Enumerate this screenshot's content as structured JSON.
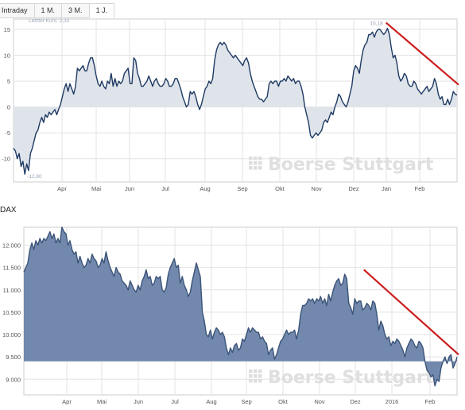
{
  "tabs": [
    {
      "label": "Intraday",
      "active": false
    },
    {
      "label": "1 M.",
      "active": false
    },
    {
      "label": "3 M.",
      "active": false
    },
    {
      "label": "1 J.",
      "active": true
    }
  ],
  "watermark": "Boerse Stuttgart",
  "chart_data": [
    {
      "type": "area",
      "annotation": "Letzter Kurs: 2,32",
      "high_label": "15,18",
      "low_label": "-12,80",
      "x_tick_labels": [
        "Apr",
        "Mai",
        "Jun",
        "Jul",
        "Aug",
        "Sep",
        "Okt",
        "Nov",
        "Dez",
        "Jan",
        "Feb"
      ],
      "y_ticks": [
        15,
        10,
        5,
        0,
        -5,
        -10
      ],
      "y_tick_labels": [
        "15",
        "10",
        "5",
        "0",
        "-5",
        "-10"
      ],
      "ylim": [
        -14.5,
        17
      ],
      "baseline": 0,
      "line_color": "#1f3a63",
      "fill_color": "#dfe4ea",
      "grid": true,
      "values": [
        -8,
        -8.5,
        -10,
        -9,
        -11.5,
        -10.5,
        -13,
        -11,
        -12.3,
        -9,
        -8,
        -6.5,
        -5,
        -4.5,
        -3,
        -2,
        -3,
        -1.5,
        -2,
        -1,
        -1.5,
        -1,
        -0.5,
        -1.5,
        -0.5,
        0.5,
        2,
        3.5,
        4.5,
        3,
        4.5,
        3.5,
        2.5,
        4,
        7.5,
        7,
        7.5,
        8,
        7,
        7,
        8.5,
        9.5,
        9.5,
        8,
        6,
        4.5,
        4,
        5,
        4,
        3.5,
        5,
        4.5,
        6.5,
        4,
        5.5,
        4,
        5,
        4.5,
        5,
        6.5,
        7,
        7.5,
        4.5,
        4.5,
        9.5,
        9,
        6.5,
        5.5,
        4,
        4,
        4.5,
        5,
        6,
        5,
        4,
        5,
        5.5,
        4.5,
        4,
        4,
        4.5,
        5.5,
        5,
        4,
        4,
        4.5,
        5.5,
        5.5,
        4.5,
        3.5,
        2,
        1,
        0,
        0.5,
        3,
        2.5,
        3,
        2,
        0.5,
        -0.5,
        0.5,
        2,
        3.5,
        4,
        5,
        4.5,
        5.5,
        9,
        11,
        12,
        12.5,
        12,
        12.5,
        12,
        11,
        10.5,
        10,
        9.5,
        10,
        9.5,
        9,
        8.5,
        8,
        9,
        9.5,
        8.5,
        6.5,
        5,
        4,
        3,
        2,
        1.5,
        1.5,
        1,
        1.5,
        2,
        4.5,
        5,
        4.5,
        5,
        5,
        4,
        5,
        5,
        5.5,
        5,
        6,
        5.5,
        5,
        5.5,
        4.5,
        5,
        5,
        4,
        2.5,
        0,
        -1.5,
        -3,
        -5.5,
        -6,
        -5.5,
        -5,
        -5.5,
        -5,
        -4.5,
        -3,
        -2.5,
        -3,
        -2,
        -1,
        -1.5,
        0,
        1,
        2.5,
        2,
        1,
        0.5,
        0,
        1,
        2.5,
        4,
        7,
        8,
        7.5,
        6.5,
        9,
        11,
        12,
        12.5,
        14,
        14,
        14.5,
        13.5,
        14.5,
        15,
        15,
        14.5,
        14,
        14.5,
        15.2,
        14,
        11.5,
        9.5,
        10,
        8.5,
        6,
        5,
        5.5,
        6.5,
        6,
        4.5,
        4,
        4,
        5,
        4.5,
        3.5,
        3,
        2.5,
        3,
        3.5,
        4,
        3,
        3.5,
        4,
        5.5,
        4.5,
        2.5,
        1.5,
        2,
        0.5,
        0.5,
        1.5,
        0.5,
        1.5,
        3,
        2.5,
        2.3
      ],
      "trend_line": {
        "color": "#cc1f1f",
        "from": [
          0.84,
          16.3
        ],
        "to": [
          1.0,
          4.3
        ]
      }
    },
    {
      "type": "area",
      "title": "DAX",
      "x_tick_labels": [
        "Apr",
        "Mai",
        "Jun",
        "Jul",
        "Aug",
        "Sep",
        "Okt",
        "Nov",
        "Dez",
        "2016",
        "Feb"
      ],
      "y_ticks": [
        12000,
        11500,
        11000,
        10500,
        10000,
        9500,
        9000
      ],
      "y_tick_labels": [
        "12.000",
        "11.500",
        "11.000",
        "10.500",
        "10.000",
        "9.500",
        "9.000"
      ],
      "ylim": [
        8650,
        12400
      ],
      "baseline": 9400,
      "line_color": "#3b5478",
      "fill_color": "#7288ad",
      "grid": true,
      "values": [
        11400,
        11500,
        11600,
        11900,
        12050,
        11900,
        12100,
        12000,
        12150,
        12050,
        12150,
        12100,
        12200,
        12300,
        12150,
        12250,
        12050,
        12150,
        12050,
        12400,
        12300,
        12250,
        12000,
        12100,
        11900,
        11800,
        11850,
        11600,
        11750,
        11600,
        11500,
        11550,
        11700,
        11600,
        11800,
        11700,
        11650,
        11500,
        11550,
        11700,
        11600,
        11850,
        11650,
        11500,
        11400,
        11300,
        11500,
        11400,
        11350,
        11200,
        11150,
        11100,
        11000,
        11200,
        11100,
        11000,
        10950,
        11100,
        11000,
        11200,
        11300,
        11450,
        11250,
        11300,
        11100,
        11150,
        11300,
        11250,
        11300,
        11000,
        10950,
        11050,
        11350,
        11500,
        11600,
        11700,
        11500,
        11550,
        11150,
        11300,
        11100,
        11000,
        10850,
        10950,
        11200,
        11400,
        11600,
        11450,
        11300,
        10500,
        10300,
        10000,
        9950,
        10100,
        9900,
        10050,
        10150,
        10100,
        10000,
        10050,
        9950,
        9700,
        9550,
        9700,
        9600,
        9750,
        9800,
        9650,
        9700,
        9900,
        9850,
        10000,
        10150,
        10050,
        10150,
        10100,
        10050,
        10050,
        9900,
        9950,
        9850,
        9800,
        9550,
        9650,
        9700,
        9450,
        9550,
        9700,
        9850,
        9900,
        10000,
        10100,
        10000,
        10050,
        10050,
        10100,
        9900,
        10100,
        10450,
        10650,
        10650,
        10700,
        10800,
        10750,
        10800,
        10700,
        10800,
        10750,
        10850,
        10700,
        10800,
        10650,
        10900,
        10750,
        10950,
        11100,
        11200,
        11250,
        11100,
        11150,
        11350,
        11250,
        10700,
        10600,
        10450,
        10800,
        10700,
        10750,
        10750,
        10550,
        10600,
        10700,
        10650,
        10550,
        10750,
        10700,
        10450,
        10100,
        10300,
        10200,
        10000,
        9900,
        9950,
        9750,
        9850,
        9800,
        9900,
        9850,
        9750,
        9650,
        9500,
        9700,
        9800,
        9900,
        9850,
        9750,
        9700,
        9850,
        9800,
        9700,
        9400,
        9200,
        9150,
        9050,
        9100,
        8850,
        9000,
        8950,
        9250,
        9400,
        9500,
        9350,
        9500,
        9550,
        9250,
        9350,
        9500
      ],
      "trend_line": {
        "color": "#cc1f1f",
        "from": [
          0.785,
          11450
        ],
        "to": [
          1.0,
          9550
        ]
      }
    }
  ]
}
